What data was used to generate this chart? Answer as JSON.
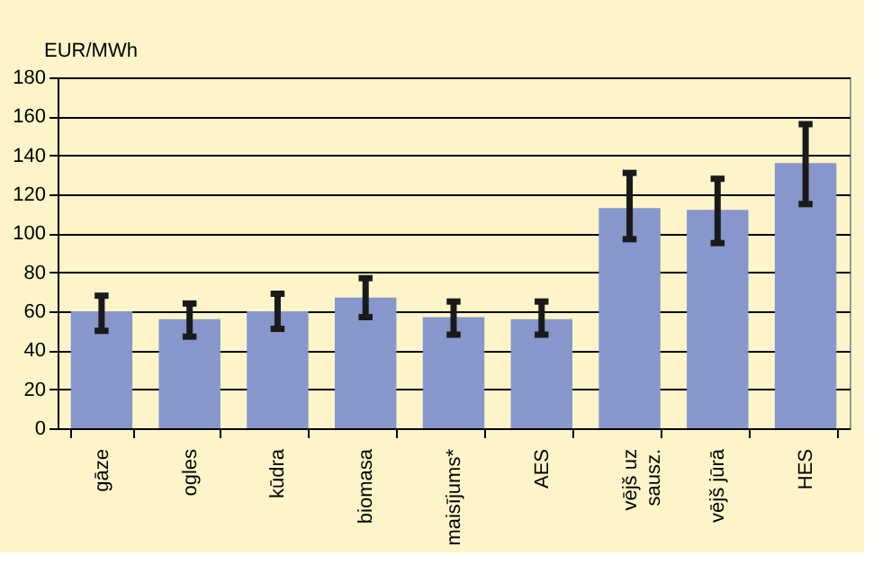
{
  "chart_data": {
    "type": "bar",
    "ylabel": "EUR/MWh",
    "categories": [
      "gāze",
      "ogles",
      "kūdra",
      "biomasa",
      "maisījums*",
      "AES",
      "vējš uz\nsausz.",
      "vējš jūrā",
      "HES"
    ],
    "values": [
      60,
      56,
      60,
      67,
      57,
      56,
      113,
      112,
      136
    ],
    "errors": [
      [
        50,
        68
      ],
      [
        47,
        64
      ],
      [
        51,
        69
      ],
      [
        57,
        77
      ],
      [
        48,
        65
      ],
      [
        48,
        65
      ],
      [
        97,
        131
      ],
      [
        95,
        128
      ],
      [
        115,
        156
      ]
    ],
    "color": "#8797cb",
    "ylim": [
      0,
      180
    ],
    "yticks": [
      0,
      20,
      40,
      60,
      80,
      100,
      120,
      140,
      160,
      180
    ],
    "grid": "y"
  }
}
